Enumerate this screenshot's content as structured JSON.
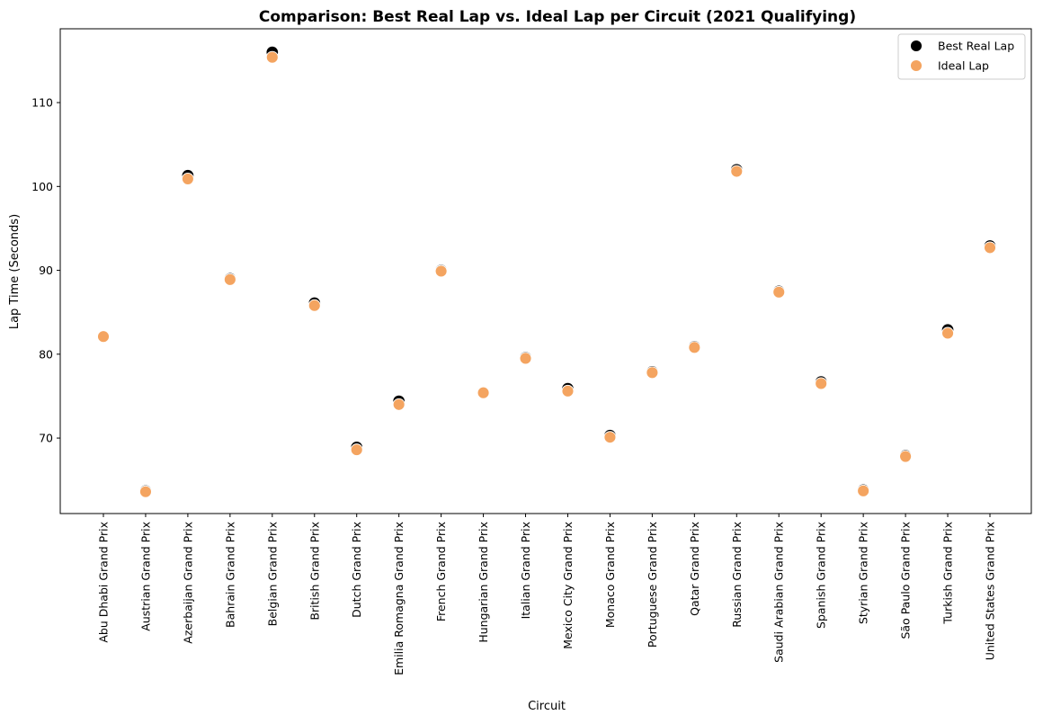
{
  "chart_data": {
    "type": "scatter",
    "title": "Comparison: Best Real Lap vs. Ideal Lap per Circuit (2021 Qualifying)",
    "xlabel": "Circuit",
    "ylabel": "Lap Time (Seconds)",
    "ylim": [
      61,
      118.8
    ],
    "yticks": [
      70,
      80,
      90,
      100,
      110
    ],
    "grid": false,
    "legend_position": "top-right",
    "categories": [
      "Abu Dhabi Grand Prix",
      "Austrian Grand Prix",
      "Azerbaijan Grand Prix",
      "Bahrain Grand Prix",
      "Belgian Grand Prix",
      "British Grand Prix",
      "Dutch Grand Prix",
      "Emilia Romagna Grand Prix",
      "French Grand Prix",
      "Hungarian Grand Prix",
      "Italian Grand Prix",
      "Mexico City Grand Prix",
      "Monaco Grand Prix",
      "Portuguese Grand Prix",
      "Qatar Grand Prix",
      "Russian Grand Prix",
      "Saudi Arabian Grand Prix",
      "Spanish Grand Prix",
      "Styrian Grand Prix",
      "São Paulo Grand Prix",
      "Turkish Grand Prix",
      "United States Grand Prix"
    ],
    "series": [
      {
        "name": "Best Real Lap",
        "color": "#000000",
        "values": [
          82.1,
          63.7,
          101.3,
          89.0,
          116.0,
          86.1,
          68.9,
          74.4,
          90.0,
          75.4,
          79.6,
          75.9,
          70.3,
          77.9,
          80.9,
          102.0,
          87.5,
          76.7,
          63.8,
          67.9,
          82.9,
          92.9
        ]
      },
      {
        "name": "Ideal Lap",
        "color": "#f4a460",
        "values": [
          82.1,
          63.6,
          100.9,
          88.9,
          115.4,
          85.8,
          68.6,
          74.0,
          89.9,
          75.4,
          79.5,
          75.6,
          70.1,
          77.8,
          80.8,
          101.8,
          87.4,
          76.5,
          63.7,
          67.8,
          82.5,
          92.7
        ]
      }
    ]
  }
}
